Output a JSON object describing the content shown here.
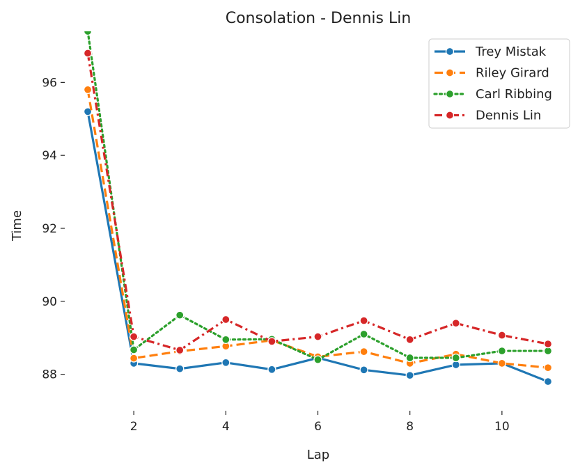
{
  "chart_data": {
    "type": "line",
    "title": "Consolation - Dennis Lin",
    "xlabel": "Lap",
    "ylabel": "Time",
    "xlim": [
      0.5,
      11.5
    ],
    "ylim": [
      87.0,
      97.4
    ],
    "xticks": [
      2,
      4,
      6,
      8,
      10
    ],
    "yticks": [
      88,
      90,
      92,
      94,
      96
    ],
    "grid": false,
    "legend_position": "top-right",
    "x": [
      1,
      2,
      3,
      4,
      5,
      6,
      7,
      8,
      9,
      10,
      11
    ],
    "series": [
      {
        "name": "Trey Mistak",
        "color": "#1f77b4",
        "dash": "solid",
        "values": [
          95.2,
          88.3,
          88.15,
          88.32,
          88.13,
          88.45,
          88.12,
          87.97,
          88.26,
          88.3,
          87.8
        ]
      },
      {
        "name": "Riley Girard",
        "color": "#ff7f0e",
        "dash": "dashed",
        "values": [
          95.8,
          88.44,
          88.63,
          88.77,
          88.93,
          88.48,
          88.62,
          88.3,
          88.55,
          88.3,
          88.18
        ]
      },
      {
        "name": "Carl Ribbing",
        "color": "#2ca02c",
        "dash": "dotted",
        "values": [
          97.4,
          88.67,
          89.62,
          88.95,
          88.96,
          88.4,
          89.1,
          88.45,
          88.45,
          88.64,
          88.64
        ]
      },
      {
        "name": "Dennis Lin",
        "color": "#d62728",
        "dash": "dashdot",
        "values": [
          96.8,
          89.03,
          88.66,
          89.5,
          88.9,
          89.03,
          89.47,
          88.95,
          89.4,
          89.07,
          88.83
        ]
      }
    ]
  }
}
